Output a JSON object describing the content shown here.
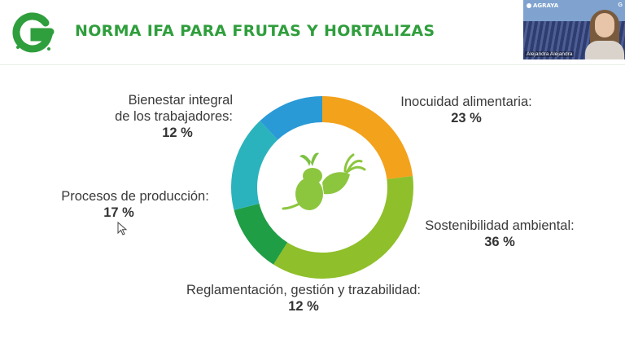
{
  "slide": {
    "title": "NORMA IFA PARA FRUTAS Y HORTALIZAS",
    "logo_icon": "green-g-logo-icon",
    "center_icon": "vegetables-icon"
  },
  "chart_data": {
    "type": "pie",
    "donut": true,
    "categories": [
      "Inocuidad alimentaria:",
      "Sostenibilidad ambiental:",
      "Reglamentación, gestión y trazabilidad:",
      "Procesos de producción:",
      "Bienestar integral de los trabajadores:"
    ],
    "values": [
      23,
      36,
      12,
      17,
      12
    ],
    "value_labels": [
      "23 %",
      "36 %",
      "12 %",
      "17 %",
      "12 %"
    ],
    "colors": [
      "#f3a21c",
      "#8fbf2a",
      "#1f9e45",
      "#2bb3bd",
      "#2a9ad6"
    ]
  },
  "labels": {
    "inocuidad": {
      "name": "Inocuidad alimentaria:",
      "pct": "23 %"
    },
    "sostenibilidad": {
      "name": "Sostenibilidad ambiental:",
      "pct": "36 %"
    },
    "reglamentacion": {
      "name": "Reglamentación, gestión y trazabilidad:",
      "pct": "12 %"
    },
    "procesos": {
      "name": "Procesos de producción:",
      "pct": "17 %"
    },
    "bienestar": {
      "name_line1": "Bienestar integral",
      "name_line2": "de los trabajadores:",
      "pct": "12 %"
    }
  },
  "video": {
    "brand": "AGRAYA",
    "corner_logo": "G",
    "participant_name": "Alejandra Alejandra"
  }
}
